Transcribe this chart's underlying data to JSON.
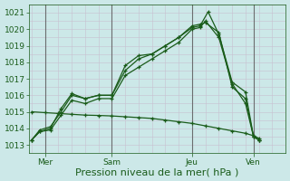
{
  "background_color": "#cce8e8",
  "grid_color": "#c8c0d0",
  "line_color": "#1a5c1a",
  "vline_color": "#555555",
  "ylim": [
    1012.5,
    1021.5
  ],
  "yticks": [
    1013,
    1014,
    1015,
    1016,
    1017,
    1018,
    1019,
    1020,
    1021
  ],
  "xlabel": "Pression niveau de la mer( hPa )",
  "xlabel_fontsize": 8,
  "tick_fontsize": 6.5,
  "day_labels": [
    "Mer",
    "Sam",
    "Jeu",
    "Ven"
  ],
  "day_positions": [
    0.5,
    3.0,
    6.0,
    8.3
  ],
  "day_vlines": [
    0.5,
    3.0,
    6.0,
    8.3
  ],
  "xlim": [
    -0.1,
    9.5
  ],
  "line1_x": [
    0,
    0.3,
    0.7,
    1.1,
    1.5,
    2.0,
    2.5,
    3.0,
    3.5,
    4.0,
    4.5,
    5.0,
    5.5,
    6.0,
    6.3,
    6.6,
    7.0,
    7.5,
    8.0,
    8.3,
    8.5
  ],
  "line1_y": [
    1013.3,
    1013.8,
    1014.0,
    1015.2,
    1016.1,
    1015.8,
    1016.0,
    1016.0,
    1017.8,
    1018.4,
    1018.5,
    1019.0,
    1019.5,
    1020.1,
    1020.2,
    1021.05,
    1019.7,
    1016.8,
    1016.2,
    1013.5,
    1013.3
  ],
  "line2_x": [
    0,
    0.3,
    0.7,
    1.1,
    1.5,
    2.0,
    2.5,
    3.0,
    3.5,
    4.0,
    4.5,
    5.0,
    5.5,
    6.0,
    6.3,
    6.5,
    7.0,
    7.5,
    8.0,
    8.3,
    8.5
  ],
  "line2_y": [
    1013.3,
    1013.9,
    1014.1,
    1015.0,
    1016.0,
    1015.8,
    1016.0,
    1016.0,
    1017.5,
    1018.2,
    1018.5,
    1019.0,
    1019.5,
    1020.2,
    1020.3,
    1020.4,
    1019.8,
    1016.5,
    1015.8,
    1013.5,
    1013.3
  ],
  "line3_x": [
    0,
    0.3,
    0.7,
    1.1,
    1.5,
    2.0,
    2.5,
    3.0,
    3.5,
    4.0,
    4.5,
    5.0,
    5.5,
    6.0,
    6.3,
    6.5,
    7.0,
    7.5,
    8.0,
    8.3,
    8.5
  ],
  "line3_y": [
    1013.3,
    1013.8,
    1013.9,
    1014.8,
    1015.7,
    1015.5,
    1015.8,
    1015.8,
    1017.2,
    1017.7,
    1018.2,
    1018.7,
    1019.2,
    1020.0,
    1020.1,
    1020.5,
    1019.5,
    1016.7,
    1015.5,
    1013.5,
    1013.3
  ],
  "line4_x": [
    0,
    0.5,
    1.0,
    1.5,
    2.0,
    2.5,
    3.0,
    3.5,
    4.0,
    4.5,
    5.0,
    5.5,
    6.0,
    6.5,
    7.0,
    7.5,
    8.0,
    8.3,
    8.5
  ],
  "line4_y": [
    1015.0,
    1014.95,
    1014.9,
    1014.85,
    1014.8,
    1014.78,
    1014.75,
    1014.7,
    1014.65,
    1014.6,
    1014.5,
    1014.4,
    1014.3,
    1014.15,
    1014.0,
    1013.85,
    1013.7,
    1013.55,
    1013.4
  ]
}
